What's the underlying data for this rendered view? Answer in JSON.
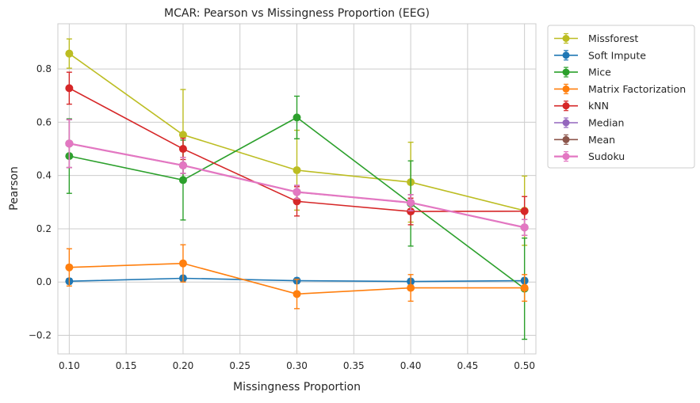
{
  "chart_data": {
    "type": "line",
    "title": "MCAR: Pearson vs Missingness Proportion (EEG)",
    "xlabel": "Missingness Proportion",
    "ylabel": "Pearson",
    "xlim": [
      0.09,
      0.51
    ],
    "ylim": [
      -0.27,
      0.97
    ],
    "xticks": [
      0.1,
      0.15,
      0.2,
      0.25,
      0.3,
      0.35,
      0.4,
      0.45,
      0.5
    ],
    "xtick_labels": [
      "0.10",
      "0.15",
      "0.20",
      "0.25",
      "0.30",
      "0.35",
      "0.40",
      "0.45",
      "0.50"
    ],
    "yticks": [
      -0.2,
      0.0,
      0.2,
      0.4,
      0.6,
      0.8
    ],
    "ytick_labels": [
      "−0.2",
      "0.0",
      "0.2",
      "0.4",
      "0.6",
      "0.8"
    ],
    "grid": true,
    "legend_position": "outside-right",
    "x": [
      0.1,
      0.2,
      0.3,
      0.4,
      0.5
    ],
    "series": [
      {
        "name": "Missforest",
        "color": "#bcbd22",
        "values": [
          0.858,
          0.553,
          0.42,
          0.375,
          0.268
        ],
        "errors": [
          0.055,
          0.17,
          0.15,
          0.15,
          0.13
        ]
      },
      {
        "name": "Soft Impute",
        "color": "#1f77b4",
        "values": [
          0.003,
          0.014,
          0.005,
          0.002,
          0.005
        ],
        "errors": [
          0.01,
          0.01,
          0.01,
          0.01,
          0.01
        ]
      },
      {
        "name": "Mice",
        "color": "#2ca02c",
        "values": [
          0.473,
          0.383,
          0.618,
          0.295,
          -0.025
        ],
        "errors": [
          0.14,
          0.15,
          0.08,
          0.16,
          0.19
        ]
      },
      {
        "name": "Matrix Factorization",
        "color": "#ff7f0e",
        "values": [
          0.055,
          0.07,
          -0.045,
          -0.022,
          -0.022
        ],
        "errors": [
          0.07,
          0.07,
          0.055,
          0.05,
          0.05
        ]
      },
      {
        "name": "kNN",
        "color": "#d62728",
        "values": [
          0.728,
          0.5,
          0.303,
          0.265,
          0.266
        ],
        "errors": [
          0.06,
          0.04,
          0.055,
          0.05,
          0.055
        ]
      },
      {
        "name": "Median",
        "color": "#9467bd",
        "values": [
          0.52,
          0.438,
          0.338,
          0.298,
          0.205
        ],
        "errors": [
          0.09,
          0.03,
          0.025,
          0.03,
          0.03
        ]
      },
      {
        "name": "Mean",
        "color": "#8c564b",
        "values": [
          0.52,
          0.438,
          0.338,
          0.298,
          0.205
        ],
        "errors": [
          0.09,
          0.03,
          0.025,
          0.03,
          0.03
        ]
      },
      {
        "name": "Sudoku",
        "color": "#e377c2",
        "values": [
          0.52,
          0.438,
          0.338,
          0.298,
          0.205
        ],
        "errors": [
          0.09,
          0.03,
          0.025,
          0.03,
          0.03
        ]
      }
    ]
  }
}
